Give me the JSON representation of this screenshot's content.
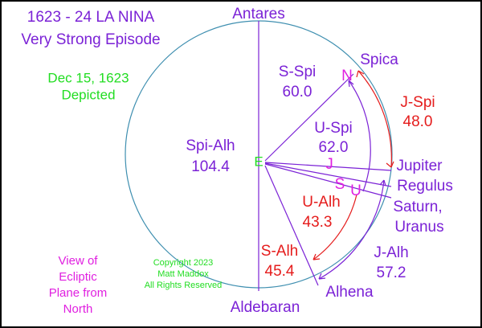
{
  "title": [
    "1623 - 24 LA NINA",
    "Very Strong Episode"
  ],
  "date": [
    "Dec 15, 1623",
    "Depicted"
  ],
  "stars": {
    "top": "Antares",
    "spica": "Spica",
    "alhena": "Alhena",
    "bottom": "Aldebaran"
  },
  "center": "E",
  "markers": {
    "neptune": "N",
    "jupiter": "J",
    "saturn": "S",
    "uranus": "U"
  },
  "planets": [
    "Jupiter",
    "Regulus",
    "Saturn,",
    "Uranus"
  ],
  "angles": {
    "s_spi": {
      "name": "S-Spi",
      "value": "60.0"
    },
    "j_spi": {
      "name": "J-Spi",
      "value": "48.0"
    },
    "u_spi": {
      "name": "U-Spi",
      "value": "62.0"
    },
    "spi_alh": {
      "name": "Spi-Alh",
      "value": "104.4"
    },
    "u_alh": {
      "name": "U-Alh",
      "value": "43.3"
    },
    "s_alh": {
      "name": "S-Alh",
      "value": "45.4"
    },
    "j_alh": {
      "name": "J-Alh",
      "value": "57.2"
    }
  },
  "view": [
    "View of",
    "Ecliptic",
    "Plane from",
    "North"
  ],
  "copyright": [
    "Copyright 2023",
    "Matt Maddox",
    "All Rights Reserved"
  ]
}
